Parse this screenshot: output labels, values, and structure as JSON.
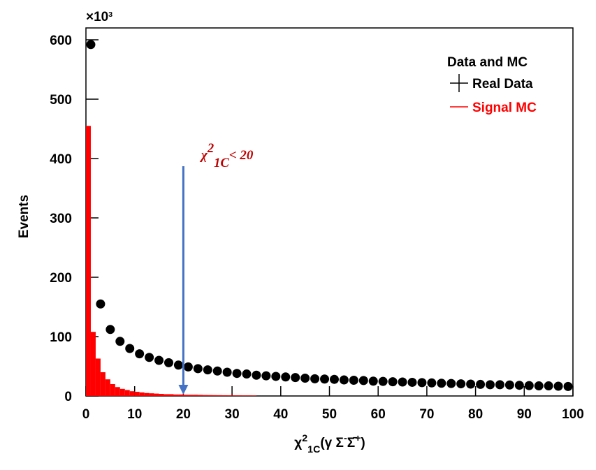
{
  "chart_data": {
    "type": "histogram",
    "y_multiplier": [
      {
        "text": "×10",
        "pos": "base"
      },
      {
        "text": "3",
        "pos": "sup"
      }
    ],
    "y_label": "Events",
    "x_label": [
      {
        "text": "χ",
        "pos": "base"
      },
      {
        "text": "2",
        "pos": "sup"
      },
      {
        "text": "1C",
        "pos": "sub"
      },
      {
        "text": "(γ Σ",
        "pos": "base"
      },
      {
        "text": "-",
        "pos": "sup"
      },
      {
        "text": "Σ̄",
        "pos": "base"
      },
      {
        "text": "+",
        "pos": "sup"
      },
      {
        "text": ")",
        "pos": "base"
      }
    ],
    "xlim": [
      0,
      100
    ],
    "xticks": [
      0,
      10,
      20,
      30,
      40,
      50,
      60,
      70,
      80,
      90,
      100
    ],
    "ylim": [
      0,
      620
    ],
    "yticks": [
      0,
      100,
      200,
      300,
      400,
      500,
      600
    ],
    "legend_title": "Data and MC",
    "legend": "top right",
    "series": [
      {
        "name": "Real Data",
        "type": "scatter",
        "color": "#000000",
        "x": [
          1,
          3,
          5,
          7,
          9,
          11,
          13,
          15,
          17,
          19,
          21,
          23,
          25,
          27,
          29,
          31,
          33,
          35,
          37,
          39,
          41,
          43,
          45,
          47,
          49,
          51,
          53,
          55,
          57,
          59,
          61,
          63,
          65,
          67,
          69,
          71,
          73,
          75,
          77,
          79,
          81,
          83,
          85,
          87,
          89,
          91,
          93,
          95,
          97,
          99
        ],
        "values": [
          592,
          155,
          112,
          92,
          80,
          71,
          65,
          60,
          56,
          52,
          49,
          46,
          44,
          42,
          40,
          38,
          37,
          35,
          34,
          33,
          32,
          31,
          30,
          29,
          28.5,
          28,
          27,
          26.5,
          26,
          25,
          24.5,
          24,
          23.5,
          23,
          22.5,
          22,
          21.5,
          21,
          20.5,
          20,
          19.5,
          19,
          19,
          18.5,
          18,
          17.5,
          17,
          17,
          16.5,
          16
        ]
      },
      {
        "name": "Signal MC",
        "type": "histogram",
        "color": "#ff0000",
        "bins": [
          0,
          1,
          2,
          3,
          4,
          5,
          6,
          7,
          8,
          9,
          10,
          11,
          12,
          13,
          14,
          15,
          16,
          17,
          18,
          19,
          20,
          21,
          22,
          23,
          24,
          25,
          26,
          27,
          28,
          29,
          30,
          31,
          32,
          33,
          34,
          35
        ],
        "values": [
          455,
          108,
          63,
          40,
          28,
          20,
          15,
          12,
          10,
          8,
          7,
          6,
          5,
          4.5,
          4,
          3.5,
          3,
          3,
          2.5,
          2.5,
          2,
          2,
          2,
          1.8,
          1.6,
          1.5,
          1.4,
          1.3,
          1.2,
          1.1,
          1,
          1,
          0.9,
          0.9,
          0.8
        ]
      }
    ],
    "annotation": {
      "x": 20,
      "color": "#c00000",
      "arrow_color": "#4472c4",
      "text": [
        {
          "text": "χ",
          "pos": "base"
        },
        {
          "text": "2",
          "pos": "sup"
        },
        {
          "text": "1C",
          "pos": "sub"
        },
        {
          "text": "< 20",
          "pos": "base"
        }
      ]
    }
  }
}
